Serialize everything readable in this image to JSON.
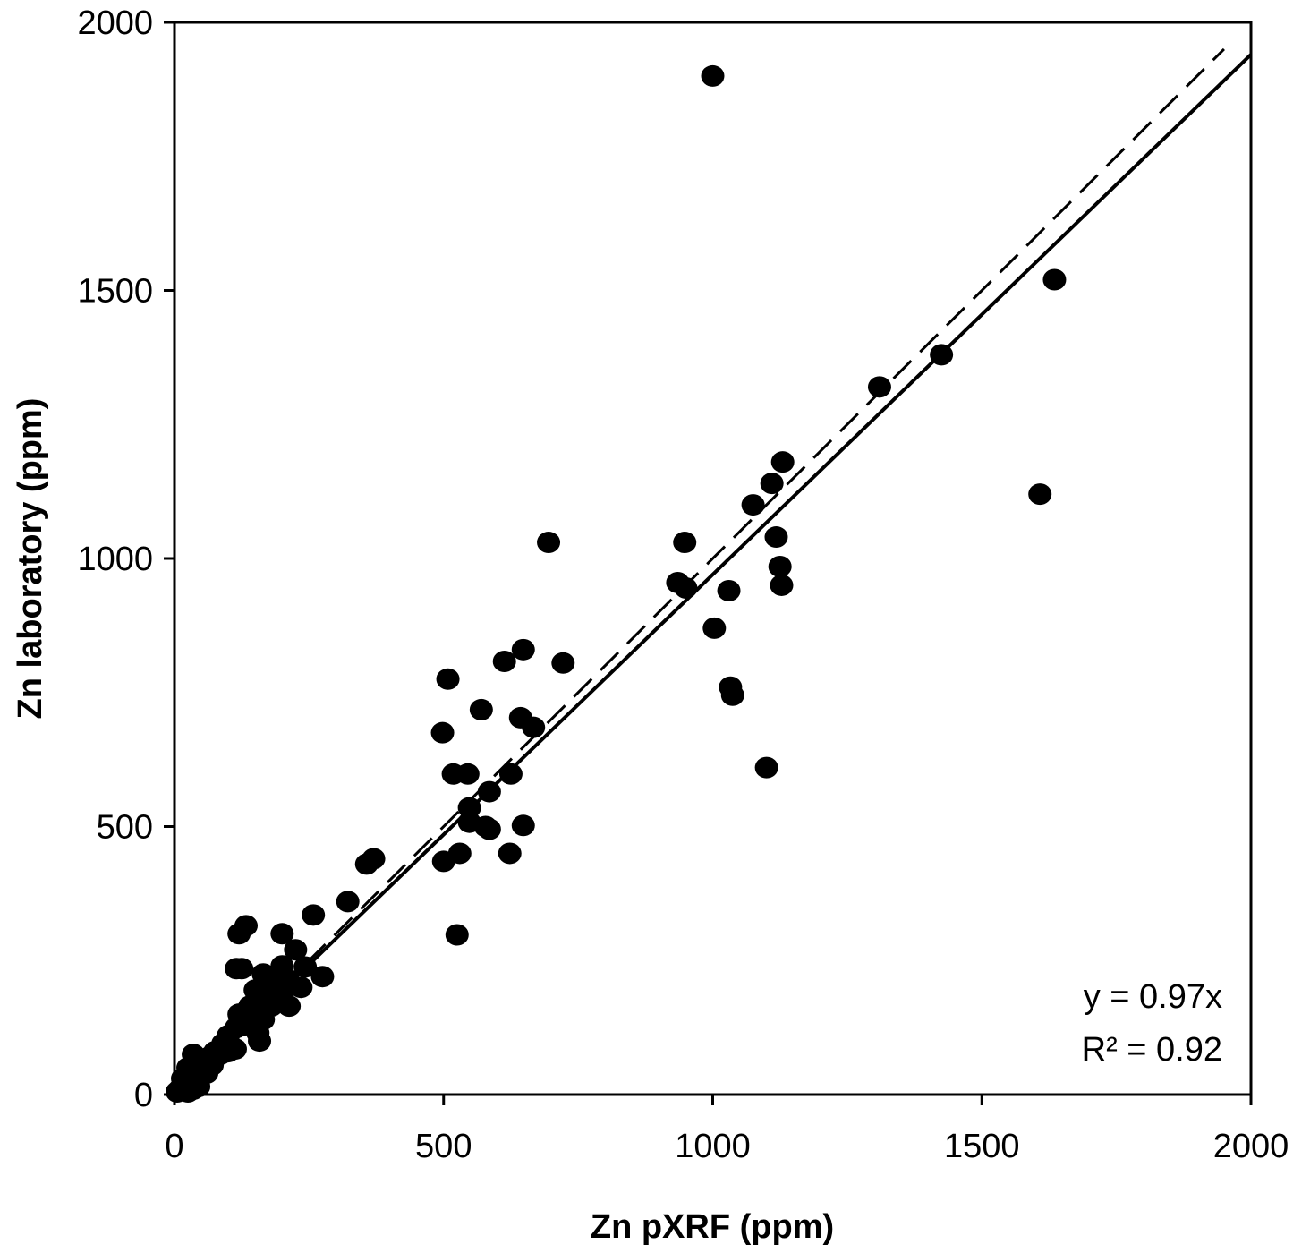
{
  "chart_data": {
    "type": "scatter",
    "xlabel": "Zn pXRF (ppm)",
    "ylabel": "Zn laboratory (ppm)",
    "xlim": [
      0,
      2000
    ],
    "ylim": [
      0,
      2000
    ],
    "x_ticks": [
      "0",
      "500",
      "1000",
      "1500",
      "2000"
    ],
    "y_ticks": [
      "0",
      "500",
      "1000",
      "1500",
      "2000"
    ],
    "grid": false,
    "trendline": {
      "slope": 0.97,
      "style": "solid",
      "extent": [
        0,
        2000
      ]
    },
    "identity_line": {
      "slope": 1,
      "style": "dashed",
      "extent": [
        0,
        1950
      ]
    },
    "annotations": {
      "equation": "y = 0.97x",
      "r2": "R² = 0.92"
    },
    "points": [
      [
        1000,
        1900
      ],
      [
        1635,
        1520
      ],
      [
        1425,
        1380
      ],
      [
        1310,
        1320
      ],
      [
        1130,
        1180
      ],
      [
        1110,
        1140
      ],
      [
        1075,
        1100
      ],
      [
        1608,
        1120
      ],
      [
        1118,
        1040
      ],
      [
        1125,
        985
      ],
      [
        1128,
        950
      ],
      [
        1100,
        610
      ],
      [
        948,
        1030
      ],
      [
        935,
        955
      ],
      [
        950,
        945
      ],
      [
        1030,
        940
      ],
      [
        1003,
        870
      ],
      [
        1033,
        760
      ],
      [
        1037,
        745
      ],
      [
        695,
        1030
      ],
      [
        722,
        805
      ],
      [
        613,
        808
      ],
      [
        648,
        830
      ],
      [
        508,
        775
      ],
      [
        570,
        718
      ],
      [
        643,
        703
      ],
      [
        667,
        685
      ],
      [
        498,
        675
      ],
      [
        518,
        598
      ],
      [
        545,
        598
      ],
      [
        625,
        598
      ],
      [
        585,
        565
      ],
      [
        548,
        535
      ],
      [
        548,
        508
      ],
      [
        578,
        500
      ],
      [
        585,
        495
      ],
      [
        648,
        502
      ],
      [
        623,
        450
      ],
      [
        530,
        450
      ],
      [
        500,
        435
      ],
      [
        525,
        298
      ],
      [
        370,
        440
      ],
      [
        357,
        430
      ],
      [
        322,
        360
      ],
      [
        258,
        335
      ],
      [
        200,
        300
      ],
      [
        133,
        315
      ],
      [
        120,
        300
      ],
      [
        225,
        270
      ],
      [
        243,
        238
      ],
      [
        275,
        220
      ],
      [
        115,
        235
      ],
      [
        125,
        235
      ],
      [
        165,
        225
      ],
      [
        200,
        240
      ],
      [
        180,
        210
      ],
      [
        235,
        200
      ],
      [
        150,
        195
      ],
      [
        160,
        175
      ],
      [
        200,
        185
      ],
      [
        180,
        165
      ],
      [
        213,
        165
      ],
      [
        140,
        165
      ],
      [
        165,
        140
      ],
      [
        120,
        150
      ],
      [
        115,
        125
      ],
      [
        155,
        115
      ],
      [
        100,
        110
      ],
      [
        158,
        100
      ],
      [
        113,
        85
      ],
      [
        90,
        95
      ],
      [
        75,
        80
      ],
      [
        65,
        70
      ],
      [
        35,
        75
      ],
      [
        45,
        55
      ],
      [
        55,
        45
      ],
      [
        25,
        50
      ],
      [
        40,
        35
      ],
      [
        15,
        30
      ],
      [
        30,
        20
      ],
      [
        45,
        15
      ],
      [
        20,
        15
      ],
      [
        10,
        10
      ],
      [
        25,
        5
      ],
      [
        5,
        5
      ],
      [
        35,
        10
      ],
      [
        60,
        40
      ],
      [
        70,
        55
      ],
      [
        85,
        75
      ],
      [
        100,
        80
      ],
      [
        130,
        130
      ],
      [
        145,
        150
      ],
      [
        170,
        180
      ],
      [
        195,
        200
      ],
      [
        210,
        215
      ]
    ]
  }
}
